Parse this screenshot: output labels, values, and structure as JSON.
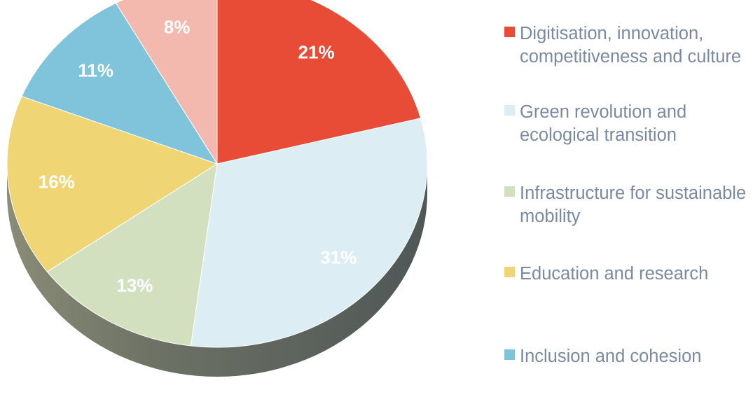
{
  "chart_data": {
    "type": "pie",
    "title": "",
    "slices": [
      {
        "label": "Digitisation, innovation, competitiveness and culture",
        "value": 21,
        "display": "21%",
        "color": "#e84b36"
      },
      {
        "label": "Green revolution and ecological transition",
        "value": 31,
        "display": "31%",
        "color": "#dcedf4"
      },
      {
        "label": "Infrastructure for sustainable mobility",
        "value": 13,
        "display": "13%",
        "color": "#d3e0bf"
      },
      {
        "label": "Education and research",
        "value": 16,
        "display": "16%",
        "color": "#efd574"
      },
      {
        "label": "Inclusion and cohesion",
        "value": 11,
        "display": "11%",
        "color": "#7fc4da"
      },
      {
        "label": "",
        "value": 8,
        "display": "8%",
        "color": "#f4b9ae"
      }
    ],
    "legend_position": "right",
    "legend": [
      {
        "label": "Digitisation, innovation, competitiveness and culture",
        "color": "#e84b36"
      },
      {
        "label": "Green revolution and ecological transition",
        "color": "#dcedf4"
      },
      {
        "label": "Infrastructure for sustainable mobility",
        "color": "#d3e0bf"
      },
      {
        "label": "Education and research",
        "color": "#efd574"
      },
      {
        "label": "Inclusion and cohesion",
        "color": "#7fc4da"
      }
    ]
  }
}
